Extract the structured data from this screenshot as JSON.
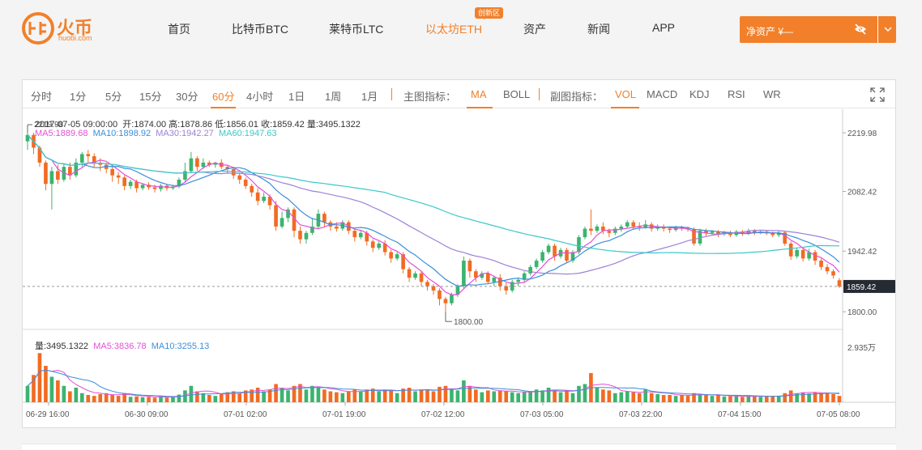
{
  "header": {
    "logo_text": "火币",
    "logo_sub": "huobi.com",
    "nav": [
      {
        "label": "首页",
        "active": false
      },
      {
        "label": "比特币BTC",
        "active": false
      },
      {
        "label": "莱特币LTC",
        "active": false
      },
      {
        "label": "以太坊ETH",
        "active": true
      },
      {
        "label": "资产",
        "active": false
      },
      {
        "label": "新闻",
        "active": false
      },
      {
        "label": "APP",
        "active": false
      }
    ],
    "nav_badge": "创新区",
    "asset_label": "净资产 ¥—",
    "eye_icon": "eye-hidden-icon",
    "caret_icon": "chevron-down-icon"
  },
  "toolbar": {
    "periods": [
      "分时",
      "1分",
      "5分",
      "15分",
      "30分",
      "60分",
      "4小时",
      "1日",
      "1周",
      "1月"
    ],
    "active_period": "60分",
    "main_indicator_label": "主图指标：",
    "main_indicators": [
      "MA",
      "BOLL"
    ],
    "active_main": "MA",
    "sub_indicator_label": "副图指标：",
    "sub_indicators": [
      "VOL",
      "MACD",
      "KDJ",
      "RSI",
      "WR"
    ],
    "active_sub": "VOL",
    "fullscreen_icon": "fullscreen-icon"
  },
  "info": {
    "datetime": "2017-07-05 09:00:00",
    "open": "开:1874.00",
    "high": "高:1878.86",
    "low": "低:1856.01",
    "close": "收:1859.42",
    "volume": "量:3495.1322",
    "ma5": "MA5:1889.68",
    "ma10": "MA10:1898.92",
    "ma30": "MA30:1942.27",
    "ma60": "MA60:1947.63",
    "vol_label": "量:3495.1322",
    "vol_ma5": "MA5:3836.78",
    "vol_ma10": "MA10:3255.13"
  },
  "colors": {
    "accent": "#f2802a",
    "up": "#3bb46e",
    "down": "#f26b22",
    "ma5": "#e44fd8",
    "ma10": "#3a8fd9",
    "ma30": "#9d81d9",
    "ma60": "#3cc8c8"
  },
  "chart_data": {
    "type": "candlestick",
    "price_axis_ticks": [
      "2219.98",
      "2082.42",
      "1942.42",
      "1800.00"
    ],
    "price_axis_values": [
      2219.98,
      2082.42,
      1942.42,
      1800.0
    ],
    "current_price": "1859.42",
    "current_price_value": 1859.42,
    "max_marker": "2219.98",
    "max_marker_value": 2219.98,
    "min_marker": "1800.00",
    "min_marker_value": 1800.0,
    "volume_axis_tick": "2.935万",
    "volume_axis_value": 29350,
    "x_tick_labels": [
      "06-29 16:00",
      "06-30 09:00",
      "07-01 02:00",
      "07-01 19:00",
      "07-02 12:00",
      "07-03 05:00",
      "07-03 22:00",
      "07-04 15:00",
      "07-05 08:00"
    ],
    "candles": [
      [
        2200,
        2215,
        2225,
        2180,
        9000
      ],
      [
        2215,
        2185,
        2220,
        2170,
        15000
      ],
      [
        2185,
        2150,
        2190,
        2140,
        27000
      ],
      [
        2150,
        2100,
        2155,
        2085,
        20000
      ],
      [
        2100,
        2130,
        2140,
        2040,
        14000
      ],
      [
        2130,
        2110,
        2145,
        2100,
        12000
      ],
      [
        2110,
        2140,
        2148,
        2105,
        9000
      ],
      [
        2140,
        2120,
        2150,
        2110,
        6000
      ],
      [
        2120,
        2150,
        2160,
        2115,
        8000
      ],
      [
        2150,
        2170,
        2175,
        2140,
        5000
      ],
      [
        2170,
        2165,
        2180,
        2150,
        4000
      ],
      [
        2165,
        2150,
        2172,
        2140,
        3500
      ],
      [
        2150,
        2145,
        2160,
        2130,
        4500
      ],
      [
        2145,
        2135,
        2150,
        2125,
        5000
      ],
      [
        2135,
        2120,
        2140,
        2105,
        4000
      ],
      [
        2120,
        2115,
        2128,
        2100,
        3500
      ],
      [
        2115,
        2095,
        2120,
        2085,
        5000
      ],
      [
        2095,
        2105,
        2110,
        2088,
        3000
      ],
      [
        2105,
        2090,
        2110,
        2080,
        3200
      ],
      [
        2090,
        2098,
        2102,
        2085,
        2800
      ],
      [
        2098,
        2092,
        2104,
        2086,
        3000
      ],
      [
        2092,
        2088,
        2098,
        2080,
        2500
      ],
      [
        2088,
        2096,
        2100,
        2082,
        3300
      ],
      [
        2096,
        2090,
        2100,
        2084,
        2600
      ],
      [
        2090,
        2094,
        2098,
        2086,
        2800
      ],
      [
        2094,
        2110,
        2115,
        2090,
        4200
      ],
      [
        2110,
        2130,
        2150,
        2105,
        6500
      ],
      [
        2130,
        2160,
        2175,
        2125,
        9000
      ],
      [
        2160,
        2140,
        2165,
        2130,
        6000
      ],
      [
        2140,
        2150,
        2160,
        2135,
        5000
      ],
      [
        2150,
        2145,
        2155,
        2140,
        4000
      ],
      [
        2145,
        2150,
        2152,
        2138,
        3500
      ],
      [
        2150,
        2140,
        2158,
        2135,
        4500
      ],
      [
        2140,
        2135,
        2145,
        2125,
        5500
      ],
      [
        2135,
        2120,
        2140,
        2112,
        6000
      ],
      [
        2120,
        2110,
        2125,
        2100,
        5000
      ],
      [
        2110,
        2095,
        2115,
        2088,
        6500
      ],
      [
        2095,
        2080,
        2100,
        2070,
        7000
      ],
      [
        2080,
        2060,
        2090,
        2050,
        8000
      ],
      [
        2060,
        2070,
        2080,
        2055,
        6000
      ],
      [
        2070,
        2050,
        2075,
        2040,
        7000
      ],
      [
        2050,
        2000,
        2060,
        1990,
        10000
      ],
      [
        2000,
        2020,
        2035,
        1995,
        8000
      ],
      [
        2020,
        2040,
        2045,
        2010,
        6500
      ],
      [
        2040,
        1990,
        2045,
        1975,
        9000
      ],
      [
        1990,
        1970,
        2000,
        1960,
        10000
      ],
      [
        1970,
        1985,
        1990,
        1960,
        7000
      ],
      [
        1985,
        2000,
        2020,
        1980,
        9000
      ],
      [
        2000,
        2030,
        2040,
        1995,
        8000
      ],
      [
        2030,
        2010,
        2035,
        2000,
        7000
      ],
      [
        2010,
        2000,
        2015,
        1990,
        6000
      ],
      [
        2000,
        1995,
        2010,
        1988,
        5500
      ],
      [
        1995,
        2010,
        2015,
        1990,
        5000
      ],
      [
        2010,
        1990,
        2015,
        1982,
        6000
      ],
      [
        1990,
        1975,
        1995,
        1965,
        7000
      ],
      [
        1975,
        1985,
        1992,
        1970,
        6000
      ],
      [
        1985,
        1965,
        1990,
        1955,
        7000
      ],
      [
        1965,
        1950,
        1970,
        1940,
        7500
      ],
      [
        1950,
        1960,
        1965,
        1945,
        6000
      ],
      [
        1960,
        1940,
        1968,
        1932,
        7000
      ],
      [
        1940,
        1925,
        1945,
        1915,
        6500
      ],
      [
        1925,
        1935,
        1940,
        1920,
        5000
      ],
      [
        1935,
        1900,
        1940,
        1890,
        7500
      ],
      [
        1900,
        1880,
        1905,
        1870,
        8000
      ],
      [
        1880,
        1890,
        1895,
        1875,
        6000
      ],
      [
        1890,
        1870,
        1895,
        1860,
        7000
      ],
      [
        1870,
        1860,
        1875,
        1850,
        6500
      ],
      [
        1860,
        1850,
        1865,
        1840,
        6000
      ],
      [
        1850,
        1830,
        1855,
        1815,
        8500
      ],
      [
        1830,
        1820,
        1835,
        1800,
        9000
      ],
      [
        1820,
        1840,
        1845,
        1815,
        7000
      ],
      [
        1840,
        1860,
        1865,
        1835,
        6500
      ],
      [
        1860,
        1920,
        1930,
        1855,
        12000
      ],
      [
        1920,
        1895,
        1925,
        1880,
        9000
      ],
      [
        1895,
        1880,
        1900,
        1870,
        7000
      ],
      [
        1880,
        1890,
        1895,
        1875,
        5500
      ],
      [
        1890,
        1870,
        1895,
        1865,
        6500
      ],
      [
        1870,
        1880,
        1885,
        1860,
        6000
      ],
      [
        1880,
        1860,
        1888,
        1850,
        6500
      ],
      [
        1860,
        1850,
        1868,
        1840,
        6000
      ],
      [
        1850,
        1870,
        1875,
        1845,
        5500
      ],
      [
        1870,
        1875,
        1880,
        1860,
        5000
      ],
      [
        1875,
        1890,
        1895,
        1870,
        5500
      ],
      [
        1890,
        1905,
        1910,
        1885,
        6000
      ],
      [
        1905,
        1920,
        1925,
        1900,
        7000
      ],
      [
        1920,
        1940,
        1945,
        1915,
        6500
      ],
      [
        1940,
        1955,
        1960,
        1935,
        8000
      ],
      [
        1955,
        1930,
        1960,
        1920,
        6500
      ],
      [
        1930,
        1945,
        1950,
        1925,
        5500
      ],
      [
        1945,
        1920,
        1950,
        1915,
        6500
      ],
      [
        1920,
        1940,
        1945,
        1915,
        5000
      ],
      [
        1940,
        1975,
        1980,
        1935,
        9000
      ],
      [
        1975,
        1995,
        2000,
        1970,
        10000
      ],
      [
        1995,
        1990,
        2040,
        1980,
        16000
      ],
      [
        1990,
        2000,
        2005,
        1985,
        8000
      ],
      [
        2000,
        1990,
        2010,
        1982,
        7000
      ],
      [
        1990,
        1985,
        1995,
        1975,
        6500
      ],
      [
        1985,
        1995,
        2000,
        1980,
        5000
      ],
      [
        1995,
        2000,
        2005,
        1988,
        5500
      ],
      [
        2000,
        2010,
        2015,
        1995,
        6000
      ],
      [
        2010,
        2000,
        2015,
        1993,
        5500
      ],
      [
        2000,
        1998,
        2010,
        1990,
        5000
      ],
      [
        1998,
        2005,
        2015,
        1995,
        7000
      ],
      [
        2005,
        1995,
        2010,
        1988,
        5000
      ],
      [
        1995,
        2000,
        2005,
        1990,
        4500
      ],
      [
        2000,
        1995,
        2005,
        1988,
        4000
      ],
      [
        1995,
        1992,
        2000,
        1985,
        4000
      ],
      [
        1992,
        1998,
        2002,
        1988,
        3500
      ],
      [
        1998,
        1995,
        2002,
        1990,
        3800
      ],
      [
        1995,
        1993,
        2000,
        1988,
        3500
      ],
      [
        1993,
        1960,
        1998,
        1955,
        5000
      ],
      [
        1960,
        1990,
        1995,
        1955,
        4500
      ],
      [
        1990,
        1985,
        1995,
        1978,
        4000
      ],
      [
        1985,
        1988,
        1992,
        1980,
        3500
      ],
      [
        1988,
        1982,
        1992,
        1975,
        3800
      ],
      [
        1982,
        1986,
        1990,
        1978,
        3200
      ],
      [
        1986,
        1980,
        1990,
        1975,
        3300
      ],
      [
        1980,
        1988,
        1992,
        1976,
        3500
      ],
      [
        1988,
        1984,
        1992,
        1978,
        3000
      ],
      [
        1984,
        1990,
        1995,
        1980,
        3500
      ],
      [
        1990,
        1985,
        1994,
        1980,
        3400
      ],
      [
        1985,
        1988,
        1992,
        1982,
        3000
      ],
      [
        1988,
        1984,
        1992,
        1980,
        3100
      ],
      [
        1984,
        1980,
        1988,
        1975,
        3500
      ],
      [
        1980,
        1986,
        1990,
        1975,
        3600
      ],
      [
        1986,
        1960,
        1990,
        1955,
        5000
      ],
      [
        1960,
        1930,
        1965,
        1922,
        6500
      ],
      [
        1930,
        1945,
        1950,
        1925,
        5000
      ],
      [
        1945,
        1925,
        1950,
        1918,
        5500
      ],
      [
        1925,
        1940,
        1948,
        1920,
        4800
      ],
      [
        1940,
        1920,
        1945,
        1910,
        5500
      ],
      [
        1920,
        1905,
        1925,
        1898,
        5000
      ],
      [
        1905,
        1895,
        1912,
        1888,
        4800
      ],
      [
        1895,
        1885,
        1900,
        1878,
        4500
      ],
      [
        1874,
        1859.42,
        1878.86,
        1856.01,
        3495
      ]
    ]
  }
}
